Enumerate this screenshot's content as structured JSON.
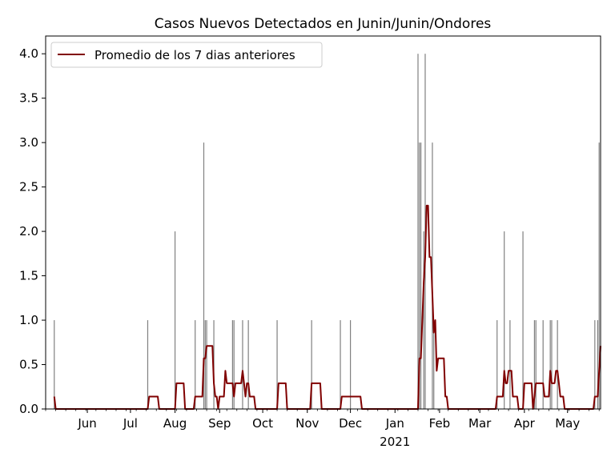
{
  "chart_data": {
    "type": "bar",
    "title": "Casos Nuevos Detectados en Junin/Junin/Ondores",
    "xlabel": "",
    "ylabel": "",
    "x_range": [
      "2020-05-03",
      "2021-05-24"
    ],
    "ylim": [
      0,
      4.2
    ],
    "yticks": [
      "0.0",
      "0.5",
      "1.0",
      "1.5",
      "2.0",
      "2.5",
      "3.0",
      "3.5",
      "4.0"
    ],
    "xticks": [
      {
        "label": "Jun",
        "date": "2020-06-01"
      },
      {
        "label": "Jul",
        "date": "2020-07-01"
      },
      {
        "label": "Aug",
        "date": "2020-08-01"
      },
      {
        "label": "Sep",
        "date": "2020-09-01"
      },
      {
        "label": "Oct",
        "date": "2020-10-01"
      },
      {
        "label": "Nov",
        "date": "2020-11-01"
      },
      {
        "label": "Dec",
        "date": "2020-12-01"
      },
      {
        "label": "Jan",
        "date": "2021-01-01",
        "sublabel": "2021"
      },
      {
        "label": "Feb",
        "date": "2021-02-01"
      },
      {
        "label": "Mar",
        "date": "2021-03-01"
      },
      {
        "label": "Apr",
        "date": "2021-04-01"
      },
      {
        "label": "May",
        "date": "2021-05-01"
      }
    ],
    "grid": false,
    "legend": {
      "position": "top-left"
    },
    "bar_color": "#808080",
    "bars": {
      "dates": [
        "2020-05-09",
        "2020-07-13",
        "2020-08-01",
        "2020-08-15",
        "2020-08-21",
        "2020-08-22",
        "2020-08-23",
        "2020-08-28",
        "2020-09-10",
        "2020-09-11",
        "2020-09-17",
        "2020-09-21",
        "2020-10-11",
        "2020-11-04",
        "2020-11-24",
        "2020-12-01",
        "2021-01-17",
        "2021-01-18",
        "2021-01-19",
        "2021-01-21",
        "2021-01-22",
        "2021-01-27",
        "2021-01-28",
        "2021-03-13",
        "2021-03-18",
        "2021-03-22",
        "2021-03-31",
        "2021-04-08",
        "2021-04-09",
        "2021-04-14",
        "2021-04-19",
        "2021-04-20",
        "2021-04-24",
        "2021-05-20",
        "2021-05-22",
        "2021-05-23"
      ],
      "values": [
        1,
        1,
        2,
        1,
        3,
        1,
        1,
        1,
        1,
        1,
        1,
        1,
        1,
        1,
        1,
        1,
        4,
        3,
        3,
        2,
        4,
        3,
        1,
        1,
        2,
        1,
        2,
        1,
        1,
        1,
        1,
        1,
        1,
        1,
        1,
        3
      ]
    },
    "series": [
      {
        "name": "Promedio de los 7 dias anteriores",
        "color": "#800000",
        "type": "line",
        "points": [
          [
            "2020-05-09",
            0.14
          ],
          [
            "2020-05-10",
            0.0
          ],
          [
            "2020-07-13",
            0.0
          ],
          [
            "2020-07-14",
            0.14
          ],
          [
            "2020-07-20",
            0.14
          ],
          [
            "2020-07-21",
            0.0
          ],
          [
            "2020-08-01",
            0.0
          ],
          [
            "2020-08-02",
            0.29
          ],
          [
            "2020-08-07",
            0.29
          ],
          [
            "2020-08-08",
            0.0
          ],
          [
            "2020-08-14",
            0.0
          ],
          [
            "2020-08-15",
            0.14
          ],
          [
            "2020-08-20",
            0.14
          ],
          [
            "2020-08-21",
            0.57
          ],
          [
            "2020-08-22",
            0.57
          ],
          [
            "2020-08-23",
            0.71
          ],
          [
            "2020-08-27",
            0.71
          ],
          [
            "2020-08-28",
            0.29
          ],
          [
            "2020-08-29",
            0.14
          ],
          [
            "2020-08-30",
            0.14
          ],
          [
            "2020-08-31",
            0.0
          ],
          [
            "2020-09-01",
            0.14
          ],
          [
            "2020-09-04",
            0.14
          ],
          [
            "2020-09-05",
            0.43
          ],
          [
            "2020-09-06",
            0.29
          ],
          [
            "2020-09-10",
            0.29
          ],
          [
            "2020-09-11",
            0.14
          ],
          [
            "2020-09-12",
            0.29
          ],
          [
            "2020-09-16",
            0.29
          ],
          [
            "2020-09-17",
            0.43
          ],
          [
            "2020-09-18",
            0.29
          ],
          [
            "2020-09-19",
            0.14
          ],
          [
            "2020-09-20",
            0.29
          ],
          [
            "2020-09-21",
            0.29
          ],
          [
            "2020-09-22",
            0.14
          ],
          [
            "2020-09-25",
            0.14
          ],
          [
            "2020-09-26",
            0.0
          ],
          [
            "2020-10-11",
            0.0
          ],
          [
            "2020-10-12",
            0.29
          ],
          [
            "2020-10-17",
            0.29
          ],
          [
            "2020-10-18",
            0.0
          ],
          [
            "2020-11-03",
            0.0
          ],
          [
            "2020-11-04",
            0.29
          ],
          [
            "2020-11-10",
            0.29
          ],
          [
            "2020-11-11",
            0.0
          ],
          [
            "2020-11-24",
            0.0
          ],
          [
            "2020-11-25",
            0.14
          ],
          [
            "2020-12-08",
            0.14
          ],
          [
            "2020-12-09",
            0.0
          ],
          [
            "2021-01-17",
            0.0
          ],
          [
            "2021-01-18",
            0.57
          ],
          [
            "2021-01-19",
            0.57
          ],
          [
            "2021-01-20",
            1.0
          ],
          [
            "2021-01-21",
            1.43
          ],
          [
            "2021-01-22",
            1.71
          ],
          [
            "2021-01-23",
            2.29
          ],
          [
            "2021-01-24",
            2.29
          ],
          [
            "2021-01-25",
            1.71
          ],
          [
            "2021-01-26",
            1.71
          ],
          [
            "2021-01-27",
            1.29
          ],
          [
            "2021-01-28",
            0.86
          ],
          [
            "2021-01-29",
            1.0
          ],
          [
            "2021-01-30",
            0.43
          ],
          [
            "2021-01-31",
            0.57
          ],
          [
            "2021-02-04",
            0.57
          ],
          [
            "2021-02-05",
            0.14
          ],
          [
            "2021-02-06",
            0.14
          ],
          [
            "2021-02-07",
            0.0
          ],
          [
            "2021-03-12",
            0.0
          ],
          [
            "2021-03-13",
            0.14
          ],
          [
            "2021-03-17",
            0.14
          ],
          [
            "2021-03-18",
            0.43
          ],
          [
            "2021-03-19",
            0.29
          ],
          [
            "2021-03-20",
            0.29
          ],
          [
            "2021-03-21",
            0.43
          ],
          [
            "2021-03-23",
            0.43
          ],
          [
            "2021-03-24",
            0.14
          ],
          [
            "2021-03-27",
            0.14
          ],
          [
            "2021-03-28",
            0.0
          ],
          [
            "2021-03-31",
            0.0
          ],
          [
            "2021-04-01",
            0.29
          ],
          [
            "2021-04-06",
            0.29
          ],
          [
            "2021-04-07",
            0.0
          ],
          [
            "2021-04-08",
            0.14
          ],
          [
            "2021-04-09",
            0.29
          ],
          [
            "2021-04-14",
            0.29
          ],
          [
            "2021-04-15",
            0.14
          ],
          [
            "2021-04-18",
            0.14
          ],
          [
            "2021-04-19",
            0.43
          ],
          [
            "2021-04-20",
            0.29
          ],
          [
            "2021-04-22",
            0.29
          ],
          [
            "2021-04-23",
            0.43
          ],
          [
            "2021-04-24",
            0.43
          ],
          [
            "2021-04-25",
            0.29
          ],
          [
            "2021-04-26",
            0.14
          ],
          [
            "2021-04-28",
            0.14
          ],
          [
            "2021-04-29",
            0.0
          ],
          [
            "2021-05-19",
            0.0
          ],
          [
            "2021-05-20",
            0.14
          ],
          [
            "2021-05-22",
            0.14
          ],
          [
            "2021-05-23",
            0.43
          ],
          [
            "2021-05-24",
            0.71
          ]
        ]
      }
    ]
  }
}
